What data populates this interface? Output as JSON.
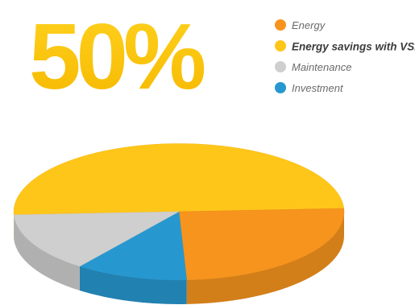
{
  "chart_data": {
    "type": "pie",
    "title": "50%",
    "slices": [
      {
        "label": "Energy savings with VSD",
        "value": 50,
        "color": "#FFC61A"
      },
      {
        "label": "Energy",
        "value": 25,
        "color": "#F7941D"
      },
      {
        "label": "Investment",
        "value": 11,
        "color": "#2798CF"
      },
      {
        "label": "Maintenance",
        "value": 14,
        "color": "#CFCFCF"
      }
    ],
    "legend_position": "top-right",
    "legend": [
      {
        "label": "Energy",
        "color": "#F7941D",
        "bold": false
      },
      {
        "label": "Energy savings with VSD",
        "sup": "+",
        "color": "#FFC61A",
        "bold": true
      },
      {
        "label": "Maintenance",
        "color": "#CFCFCF",
        "bold": false
      },
      {
        "label": "Investment",
        "color": "#2798CF",
        "bold": false
      }
    ]
  }
}
